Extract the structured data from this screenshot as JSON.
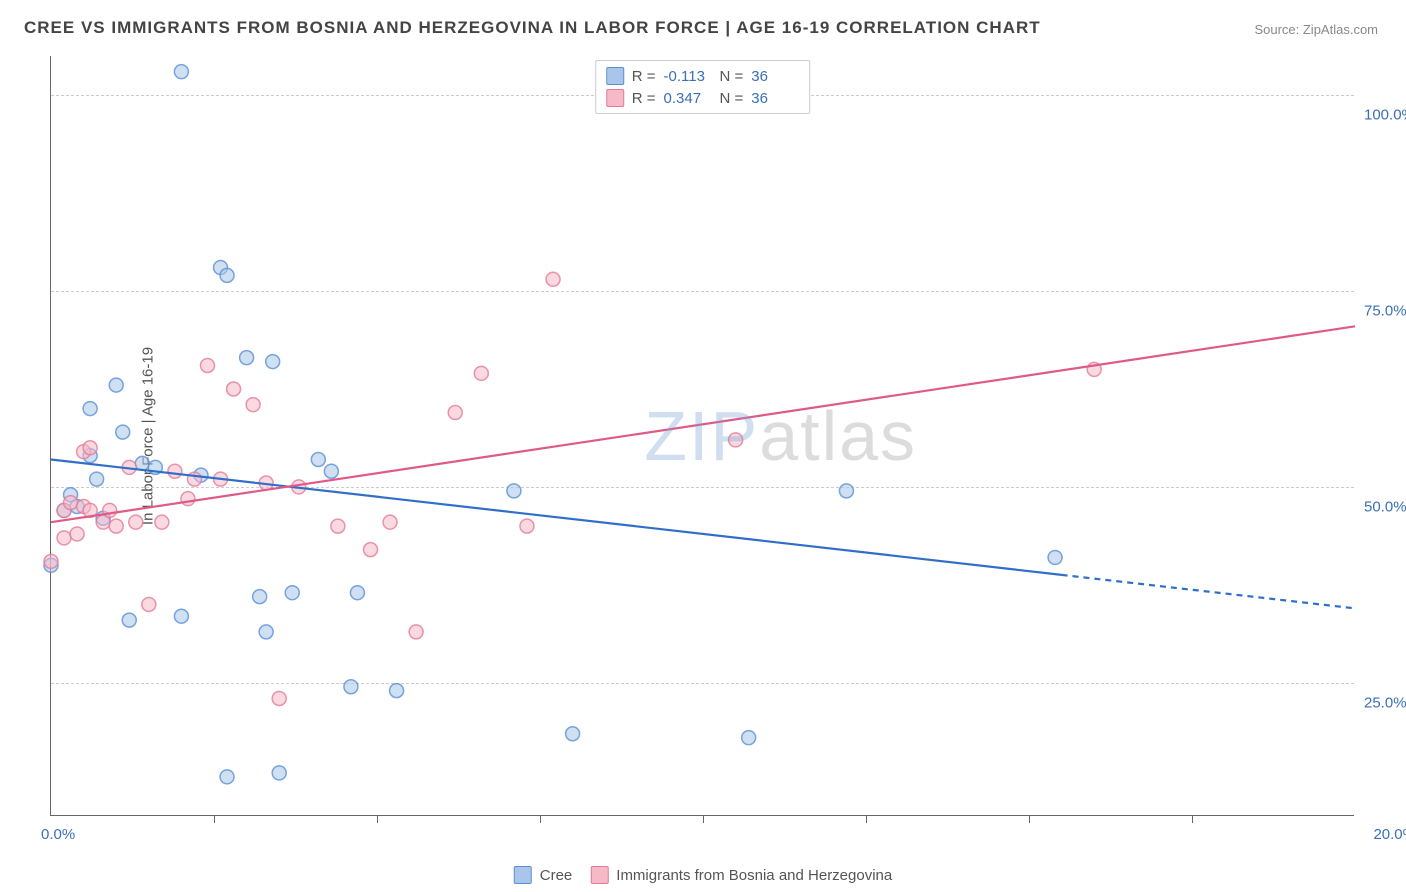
{
  "title": "CREE VS IMMIGRANTS FROM BOSNIA AND HERZEGOVINA IN LABOR FORCE | AGE 16-19 CORRELATION CHART",
  "source": "Source: ZipAtlas.com",
  "ylabel": "In Labor Force | Age 16-19",
  "watermark": {
    "part1": "ZIP",
    "part2": "atlas"
  },
  "chart": {
    "type": "scatter",
    "xlim": [
      0,
      20
    ],
    "ylim": [
      8,
      105
    ],
    "xtick_positions": [
      2.5,
      5.0,
      7.5,
      10.0,
      12.5,
      15.0,
      17.5
    ],
    "xmin_label": "0.0%",
    "xmax_label": "20.0%",
    "ytick_labels": [
      {
        "value": 25,
        "label": "25.0%"
      },
      {
        "value": 50,
        "label": "50.0%"
      },
      {
        "value": 75,
        "label": "75.0%"
      },
      {
        "value": 100,
        "label": "100.0%"
      }
    ],
    "grid_dashed": true,
    "grid_color": "#cccccc",
    "background_color": "#ffffff",
    "axis_color": "#666666",
    "point_radius": 7,
    "point_opacity": 0.55,
    "series": [
      {
        "name": "Cree",
        "color_fill": "#a9c6ea",
        "color_stroke": "#5a8fd6",
        "line_color": "#2f6fc9",
        "R": "-0.113",
        "N": "36",
        "trend": {
          "x1": 0,
          "y1": 53.5,
          "x2": 20,
          "y2": 34.5,
          "solid_until_x": 15.5
        },
        "points": [
          {
            "x": 0.0,
            "y": 40
          },
          {
            "x": 0.2,
            "y": 47
          },
          {
            "x": 0.3,
            "y": 49
          },
          {
            "x": 0.4,
            "y": 47.5
          },
          {
            "x": 0.6,
            "y": 54
          },
          {
            "x": 0.6,
            "y": 60
          },
          {
            "x": 0.7,
            "y": 51
          },
          {
            "x": 0.8,
            "y": 46
          },
          {
            "x": 1.0,
            "y": 63
          },
          {
            "x": 1.1,
            "y": 57
          },
          {
            "x": 1.2,
            "y": 33
          },
          {
            "x": 1.4,
            "y": 53
          },
          {
            "x": 1.6,
            "y": 52.5
          },
          {
            "x": 2.0,
            "y": 103
          },
          {
            "x": 2.0,
            "y": 33.5
          },
          {
            "x": 2.3,
            "y": 51.5
          },
          {
            "x": 2.6,
            "y": 78
          },
          {
            "x": 2.7,
            "y": 13
          },
          {
            "x": 2.7,
            "y": 77
          },
          {
            "x": 3.0,
            "y": 66.5
          },
          {
            "x": 3.2,
            "y": 36
          },
          {
            "x": 3.3,
            "y": 31.5
          },
          {
            "x": 3.4,
            "y": 66
          },
          {
            "x": 3.5,
            "y": 13.5
          },
          {
            "x": 3.7,
            "y": 36.5
          },
          {
            "x": 4.1,
            "y": 53.5
          },
          {
            "x": 4.3,
            "y": 52
          },
          {
            "x": 4.6,
            "y": 24.5
          },
          {
            "x": 4.7,
            "y": 36.5
          },
          {
            "x": 5.3,
            "y": 24
          },
          {
            "x": 7.1,
            "y": 49.5
          },
          {
            "x": 8.0,
            "y": 18.5
          },
          {
            "x": 9.4,
            "y": 103
          },
          {
            "x": 10.7,
            "y": 18
          },
          {
            "x": 12.2,
            "y": 49.5
          },
          {
            "x": 15.4,
            "y": 41
          }
        ]
      },
      {
        "name": "Immigrants from Bosnia and Herzegovina",
        "color_fill": "#f5b9c8",
        "color_stroke": "#e47a98",
        "line_color": "#e05a86",
        "R": "0.347",
        "N": "36",
        "trend": {
          "x1": 0,
          "y1": 45.5,
          "x2": 20,
          "y2": 70.5,
          "solid_until_x": 20
        },
        "points": [
          {
            "x": 0.0,
            "y": 40.5
          },
          {
            "x": 0.2,
            "y": 43.5
          },
          {
            "x": 0.2,
            "y": 47
          },
          {
            "x": 0.3,
            "y": 48
          },
          {
            "x": 0.4,
            "y": 44
          },
          {
            "x": 0.5,
            "y": 47.5
          },
          {
            "x": 0.5,
            "y": 54.5
          },
          {
            "x": 0.6,
            "y": 47
          },
          {
            "x": 0.6,
            "y": 55
          },
          {
            "x": 0.8,
            "y": 45.5
          },
          {
            "x": 0.9,
            "y": 47
          },
          {
            "x": 1.0,
            "y": 45
          },
          {
            "x": 1.2,
            "y": 52.5
          },
          {
            "x": 1.3,
            "y": 45.5
          },
          {
            "x": 1.5,
            "y": 35
          },
          {
            "x": 1.7,
            "y": 45.5
          },
          {
            "x": 1.9,
            "y": 52
          },
          {
            "x": 2.1,
            "y": 48.5
          },
          {
            "x": 2.2,
            "y": 51
          },
          {
            "x": 2.4,
            "y": 65.5
          },
          {
            "x": 2.6,
            "y": 51
          },
          {
            "x": 2.8,
            "y": 62.5
          },
          {
            "x": 3.1,
            "y": 60.5
          },
          {
            "x": 3.3,
            "y": 50.5
          },
          {
            "x": 3.5,
            "y": 23
          },
          {
            "x": 3.8,
            "y": 50
          },
          {
            "x": 4.4,
            "y": 45
          },
          {
            "x": 4.9,
            "y": 42
          },
          {
            "x": 5.2,
            "y": 45.5
          },
          {
            "x": 5.6,
            "y": 31.5
          },
          {
            "x": 6.2,
            "y": 59.5
          },
          {
            "x": 6.6,
            "y": 64.5
          },
          {
            "x": 7.3,
            "y": 45
          },
          {
            "x": 7.7,
            "y": 76.5
          },
          {
            "x": 10.5,
            "y": 56
          },
          {
            "x": 16.0,
            "y": 65
          }
        ]
      }
    ]
  },
  "legend_bottom": [
    {
      "label": "Cree",
      "fill": "#a9c6ea",
      "stroke": "#5a8fd6"
    },
    {
      "label": "Immigrants from Bosnia and Herzegovina",
      "fill": "#f5b9c8",
      "stroke": "#e47a98"
    }
  ]
}
